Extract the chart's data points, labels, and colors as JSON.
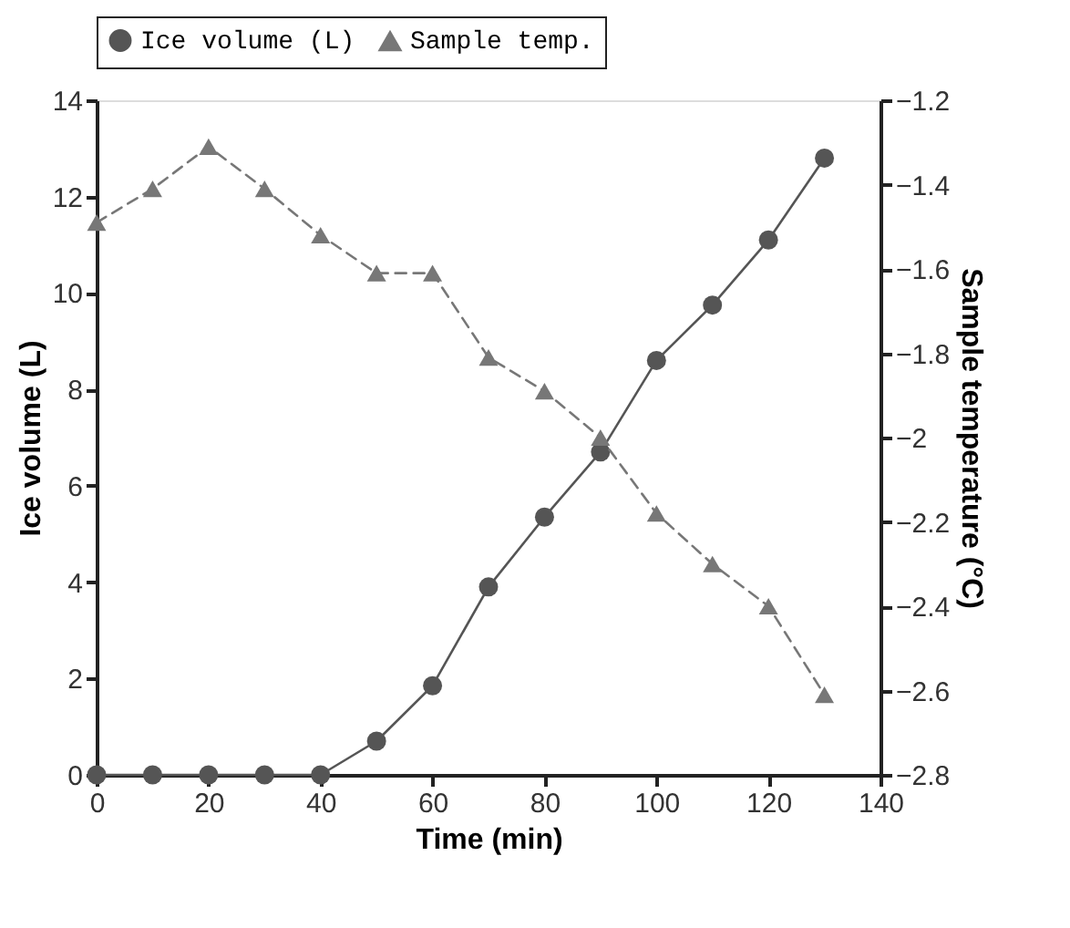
{
  "chart_data": {
    "type": "line",
    "xlabel": "Time (min)",
    "ylabel": "Ice volume (L)",
    "y2label": "Sample temperature (°C)",
    "x": [
      0,
      10,
      20,
      30,
      40,
      50,
      60,
      70,
      80,
      90,
      100,
      110,
      120,
      130
    ],
    "series": [
      {
        "name": "Ice volume (L)",
        "color": "#555555",
        "marker": "circle",
        "line_style": "solid",
        "values": [
          0,
          0,
          0,
          0,
          0,
          0.7,
          1.85,
          3.9,
          5.35,
          6.7,
          8.6,
          9.75,
          11.1,
          12.8
        ]
      },
      {
        "name": "Sample temp.",
        "color": "#777777",
        "marker": "triangle",
        "line_style": "dashed",
        "axis": "y2",
        "values": [
          -1.49,
          -1.41,
          -1.31,
          -1.41,
          -1.52,
          -1.61,
          -1.61,
          -1.81,
          -1.89,
          -2.0,
          -2.18,
          -2.3,
          -2.4,
          -2.61
        ]
      }
    ],
    "xlim": [
      0,
      140
    ],
    "xticks": [
      0,
      20,
      40,
      60,
      80,
      100,
      120,
      140
    ],
    "ylim": [
      0,
      14
    ],
    "yticks": [
      0,
      2,
      4,
      6,
      8,
      10,
      12,
      14
    ],
    "y2lim": [
      -2.8,
      -1.2
    ],
    "y2ticks": [
      -2.8,
      -2.6,
      -2.4,
      -2.2,
      -2,
      -1.8,
      -1.6,
      -1.4,
      -1.2
    ],
    "grid": false,
    "legend": "top"
  }
}
